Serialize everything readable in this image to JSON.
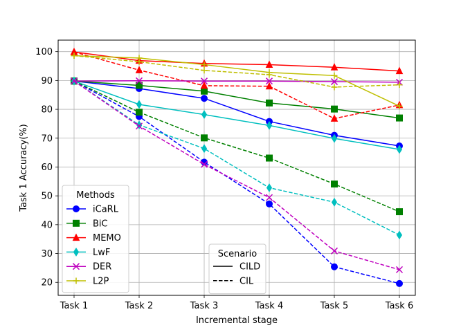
{
  "chart_data": {
    "type": "line",
    "xlabel": "Incremental stage",
    "ylabel": "Task 1 Accuracy(%)",
    "categories": [
      "Task 1",
      "Task 2",
      "Task 3",
      "Task 4",
      "Task 5",
      "Task 6"
    ],
    "ylim": [
      15.5,
      104
    ],
    "yticks": [
      20,
      30,
      40,
      50,
      60,
      70,
      80,
      90,
      100
    ],
    "grid": true,
    "series": [
      {
        "name": "iCaRL",
        "scenario": "CILD",
        "color": "#0000ff",
        "marker": "circle",
        "values": [
          89.8,
          87.2,
          83.8,
          75.8,
          71.0,
          67.3
        ]
      },
      {
        "name": "iCaRL",
        "scenario": "CIL",
        "color": "#0000ff",
        "marker": "circle",
        "values": [
          89.8,
          77.5,
          61.7,
          47.2,
          25.4,
          19.6
        ]
      },
      {
        "name": "BiC",
        "scenario": "CILD",
        "color": "#008000",
        "marker": "square",
        "values": [
          89.8,
          88.3,
          86.3,
          82.2,
          80.1,
          77.0
        ]
      },
      {
        "name": "BiC",
        "scenario": "CIL",
        "color": "#008000",
        "marker": "square",
        "values": [
          89.8,
          79.0,
          70.1,
          63.1,
          54.1,
          44.5
        ]
      },
      {
        "name": "MEMO",
        "scenario": "CILD",
        "color": "#ff0000",
        "marker": "triangle",
        "values": [
          99.9,
          96.9,
          95.9,
          95.5,
          94.6,
          93.3
        ]
      },
      {
        "name": "MEMO",
        "scenario": "CIL",
        "color": "#ff0000",
        "marker": "triangle",
        "values": [
          99.9,
          93.6,
          88.2,
          88.0,
          76.8,
          81.5
        ]
      },
      {
        "name": "LwF",
        "scenario": "CILD",
        "color": "#00bfbf",
        "marker": "diamond",
        "values": [
          89.8,
          81.7,
          78.2,
          74.4,
          69.9,
          66.1
        ]
      },
      {
        "name": "LwF",
        "scenario": "CIL",
        "color": "#00bfbf",
        "marker": "diamond",
        "values": [
          89.8,
          74.6,
          66.4,
          52.8,
          47.8,
          36.4
        ]
      },
      {
        "name": "DER",
        "scenario": "CILD",
        "color": "#bf00bf",
        "marker": "x",
        "values": [
          89.8,
          89.9,
          89.8,
          89.8,
          89.6,
          89.4
        ]
      },
      {
        "name": "DER",
        "scenario": "CIL",
        "color": "#bf00bf",
        "marker": "x",
        "values": [
          89.8,
          74.2,
          60.9,
          49.4,
          30.9,
          24.4
        ]
      },
      {
        "name": "L2P",
        "scenario": "CILD",
        "color": "#bfbf00",
        "marker": "plus",
        "values": [
          98.6,
          97.8,
          95.5,
          92.8,
          91.7,
          81.1
        ]
      },
      {
        "name": "L2P",
        "scenario": "CIL",
        "color": "#bfbf00",
        "marker": "plus",
        "values": [
          98.6,
          96.5,
          93.5,
          92.0,
          87.7,
          88.5
        ]
      }
    ],
    "legend_methods": {
      "title": "Methods",
      "placement": "lower-left",
      "entries": [
        {
          "name": "iCaRL",
          "color": "#0000ff",
          "marker": "circle"
        },
        {
          "name": "BiC",
          "color": "#008000",
          "marker": "square"
        },
        {
          "name": "MEMO",
          "color": "#ff0000",
          "marker": "triangle"
        },
        {
          "name": "LwF",
          "color": "#00bfbf",
          "marker": "diamond"
        },
        {
          "name": "DER",
          "color": "#bf00bf",
          "marker": "x"
        },
        {
          "name": "L2P",
          "color": "#bfbf00",
          "marker": "plus"
        }
      ]
    },
    "legend_scenario": {
      "title": "Scenario",
      "placement": "lower-center",
      "entries": [
        {
          "name": "CILD",
          "style": "solid"
        },
        {
          "name": "CIL",
          "style": "dashed"
        }
      ]
    }
  }
}
